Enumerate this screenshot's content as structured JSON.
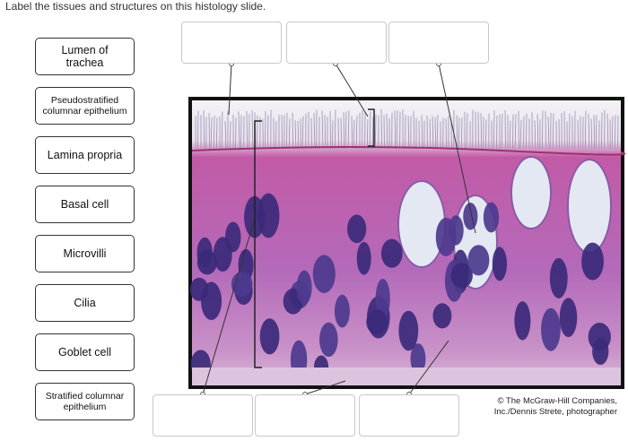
{
  "instruction": "Label the tissues and structures on this histology slide.",
  "labels": [
    "Lumen of trachea",
    "Pseudostratified columnar epithelium",
    "Lamina propria",
    "Basal cell",
    "Microvilli",
    "Cilia",
    "Goblet cell",
    "Stratified columnar epithelium"
  ],
  "credit": [
    "© The McGraw-Hill Companies,",
    "Inc./Dennis Strete, photographer"
  ]
}
